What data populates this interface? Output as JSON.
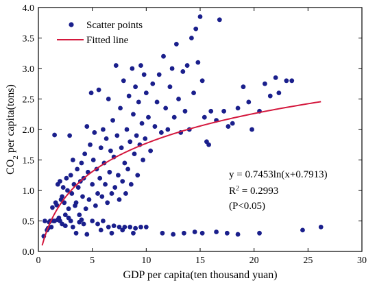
{
  "chart_data": {
    "type": "scatter",
    "xlabel": "GDP per capita(ten thousand yuan)",
    "ylabel_main": "CO",
    "ylabel_sub": "2",
    "ylabel_rest": " per capita(tons)",
    "xlim": [
      0,
      30
    ],
    "ylim": [
      0.0,
      4.0
    ],
    "x_ticks": [
      "0",
      "5",
      "10",
      "15",
      "20",
      "25",
      "30"
    ],
    "y_ticks": [
      "0.0",
      "0.5",
      "1.0",
      "1.5",
      "2.0",
      "2.5",
      "3.0",
      "3.5",
      "4.0"
    ],
    "grid": false,
    "legend": {
      "placement": "top-left",
      "scatter_label": "Scatter points",
      "line_label": "Fitted line"
    },
    "annotations": {
      "equation": "y = 0.7453ln(x+0.7913)",
      "r_label": "R",
      "r_sup": "2",
      "r_value": " = 0.2993",
      "p_value": "(P<0.05)"
    },
    "colors": {
      "points": "#1a1f8c",
      "line": "#d4183d"
    },
    "fit": {
      "a": 0.7453,
      "b": 0.7913,
      "x_start": 0.35,
      "x_end": 26.2
    },
    "points": [
      [
        0.5,
        0.25
      ],
      [
        0.6,
        0.5
      ],
      [
        0.8,
        0.35
      ],
      [
        0.9,
        0.38
      ],
      [
        1.0,
        0.48
      ],
      [
        1.1,
        0.5
      ],
      [
        1.3,
        0.72
      ],
      [
        1.4,
        0.5
      ],
      [
        1.5,
        1.91
      ],
      [
        1.6,
        0.8
      ],
      [
        1.7,
        0.76
      ],
      [
        1.8,
        1.1
      ],
      [
        1.9,
        0.55
      ],
      [
        2.0,
        1.15
      ],
      [
        2.1,
        0.85
      ],
      [
        2.2,
        0.9
      ],
      [
        2.3,
        1.05
      ],
      [
        2.4,
        0.8
      ],
      [
        2.5,
        0.6
      ],
      [
        2.6,
        1.2
      ],
      [
        2.7,
        1.0
      ],
      [
        2.8,
        0.7
      ],
      [
        2.9,
        1.9
      ],
      [
        3.0,
        1.25
      ],
      [
        3.1,
        0.95
      ],
      [
        3.2,
        1.5
      ],
      [
        3.3,
        1.1
      ],
      [
        3.4,
        0.75
      ],
      [
        3.5,
        0.8
      ],
      [
        3.6,
        1.35
      ],
      [
        3.7,
        1.05
      ],
      [
        3.8,
        0.6
      ],
      [
        3.9,
        1.15
      ],
      [
        4.0,
        1.45
      ],
      [
        4.1,
        0.9
      ],
      [
        4.2,
        1.2
      ],
      [
        4.3,
        1.6
      ],
      [
        4.4,
        0.7
      ],
      [
        4.5,
        2.05
      ],
      [
        4.6,
        1.3
      ],
      [
        4.7,
        0.85
      ],
      [
        4.8,
        1.75
      ],
      [
        4.9,
        2.6
      ],
      [
        5.0,
        1.1
      ],
      [
        5.1,
        1.5
      ],
      [
        5.2,
        1.95
      ],
      [
        5.3,
        0.75
      ],
      [
        5.4,
        1.35
      ],
      [
        5.5,
        0.95
      ],
      [
        5.6,
        2.65
      ],
      [
        5.7,
        1.2
      ],
      [
        5.8,
        1.7
      ],
      [
        5.9,
        0.9
      ],
      [
        6.0,
        2.0
      ],
      [
        6.1,
        1.45
      ],
      [
        6.2,
        1.1
      ],
      [
        6.3,
        1.85
      ],
      [
        6.4,
        0.8
      ],
      [
        6.5,
        2.5
      ],
      [
        6.6,
        1.3
      ],
      [
        6.7,
        1.65
      ],
      [
        6.8,
        0.95
      ],
      [
        6.9,
        2.15
      ],
      [
        7.0,
        1.55
      ],
      [
        7.1,
        1.05
      ],
      [
        7.2,
        3.05
      ],
      [
        7.3,
        1.9
      ],
      [
        7.4,
        1.25
      ],
      [
        7.5,
        0.85
      ],
      [
        7.6,
        2.35
      ],
      [
        7.7,
        1.7
      ],
      [
        7.8,
        1.15
      ],
      [
        7.9,
        2.8
      ],
      [
        8.0,
        1.45
      ],
      [
        8.1,
        0.95
      ],
      [
        8.2,
        2.0
      ],
      [
        8.3,
        1.35
      ],
      [
        8.4,
        2.55
      ],
      [
        8.5,
        1.8
      ],
      [
        8.6,
        1.1
      ],
      [
        8.7,
        3.0
      ],
      [
        8.8,
        2.25
      ],
      [
        8.9,
        1.6
      ],
      [
        9.0,
        2.7
      ],
      [
        9.1,
        1.9
      ],
      [
        9.2,
        1.25
      ],
      [
        9.3,
        2.45
      ],
      [
        9.4,
        1.75
      ],
      [
        9.5,
        3.05
      ],
      [
        9.6,
        2.1
      ],
      [
        9.7,
        1.5
      ],
      [
        9.8,
        2.9
      ],
      [
        9.9,
        1.85
      ],
      [
        10.0,
        2.6
      ],
      [
        10.2,
        2.2
      ],
      [
        10.4,
        1.65
      ],
      [
        10.6,
        2.75
      ],
      [
        10.8,
        2.05
      ],
      [
        11.0,
        2.45
      ],
      [
        11.2,
        2.9
      ],
      [
        11.4,
        1.95
      ],
      [
        11.6,
        3.2
      ],
      [
        11.8,
        2.35
      ],
      [
        12.0,
        2.0
      ],
      [
        12.2,
        2.7
      ],
      [
        12.4,
        3.0
      ],
      [
        12.6,
        2.2
      ],
      [
        12.8,
        3.4
      ],
      [
        13.0,
        2.5
      ],
      [
        13.2,
        1.95
      ],
      [
        13.4,
        2.95
      ],
      [
        13.6,
        2.3
      ],
      [
        13.8,
        3.05
      ],
      [
        14.0,
        2.0
      ],
      [
        14.2,
        3.5
      ],
      [
        14.4,
        2.6
      ],
      [
        14.6,
        3.65
      ],
      [
        14.8,
        3.1
      ],
      [
        15.0,
        3.85
      ],
      [
        15.2,
        2.8
      ],
      [
        15.4,
        2.2
      ],
      [
        15.6,
        1.8
      ],
      [
        15.8,
        1.75
      ],
      [
        16.0,
        2.3
      ],
      [
        16.5,
        2.15
      ],
      [
        16.8,
        3.8
      ],
      [
        17.2,
        2.3
      ],
      [
        17.6,
        2.05
      ],
      [
        18.0,
        2.1
      ],
      [
        18.5,
        2.35
      ],
      [
        19.0,
        2.7
      ],
      [
        19.5,
        2.45
      ],
      [
        19.8,
        2.0
      ],
      [
        20.5,
        2.3
      ],
      [
        21.0,
        2.75
      ],
      [
        21.5,
        2.55
      ],
      [
        22.0,
        2.85
      ],
      [
        22.3,
        2.6
      ],
      [
        23.0,
        2.8
      ],
      [
        23.5,
        2.8
      ],
      [
        1.5,
        0.5
      ],
      [
        2.0,
        0.5
      ],
      [
        3.0,
        0.5
      ],
      [
        4.0,
        0.52
      ],
      [
        5.0,
        0.5
      ],
      [
        5.5,
        0.45
      ],
      [
        6.0,
        0.5
      ],
      [
        6.5,
        0.4
      ],
      [
        7.0,
        0.42
      ],
      [
        7.5,
        0.4
      ],
      [
        8.0,
        0.4
      ],
      [
        8.5,
        0.4
      ],
      [
        9.0,
        0.38
      ],
      [
        9.5,
        0.4
      ],
      [
        10.0,
        0.4
      ],
      [
        11.5,
        0.3
      ],
      [
        12.5,
        0.28
      ],
      [
        13.5,
        0.3
      ],
      [
        14.5,
        0.32
      ],
      [
        15.2,
        0.3
      ],
      [
        16.5,
        0.32
      ],
      [
        17.5,
        0.3
      ],
      [
        18.5,
        0.28
      ],
      [
        20.5,
        0.3
      ],
      [
        24.5,
        0.35
      ],
      [
        26.2,
        0.4
      ],
      [
        3.5,
        0.3
      ],
      [
        4.5,
        0.28
      ],
      [
        5.8,
        0.35
      ],
      [
        6.8,
        0.3
      ],
      [
        2.2,
        0.45
      ],
      [
        2.5,
        0.42
      ],
      [
        3.2,
        0.4
      ],
      [
        4.2,
        0.45
      ],
      [
        1.2,
        0.4
      ],
      [
        1.8,
        0.52
      ],
      [
        2.8,
        0.55
      ],
      [
        3.8,
        0.48
      ],
      [
        7.8,
        0.35
      ],
      [
        8.8,
        0.3
      ]
    ]
  }
}
